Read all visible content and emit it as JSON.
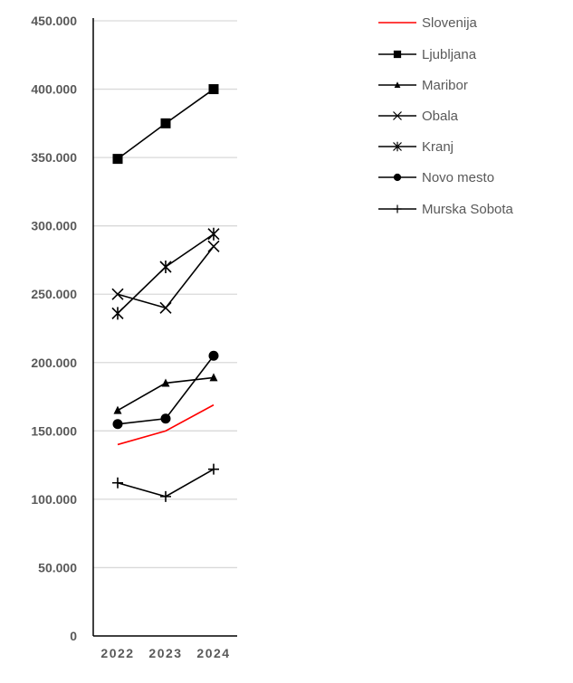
{
  "chart_data": {
    "type": "line",
    "title": "",
    "xlabel": "",
    "ylabel": "",
    "categories": [
      "2022",
      "2023",
      "2024"
    ],
    "ylim": [
      0,
      450000
    ],
    "yticks": [
      0,
      50000,
      100000,
      150000,
      200000,
      250000,
      300000,
      350000,
      400000,
      450000
    ],
    "ytick_labels": [
      "0",
      "50.000",
      "100.000",
      "150.000",
      "200.000",
      "250.000",
      "300.000",
      "350.000",
      "400.000",
      "450.000"
    ],
    "grid": true,
    "legend_position": "right",
    "series": [
      {
        "name": "Slovenija",
        "values": [
          140000,
          150000,
          169000
        ],
        "color": "#ff0000",
        "marker": "none"
      },
      {
        "name": "Ljubljana",
        "values": [
          349000,
          375000,
          400000
        ],
        "color": "#000000",
        "marker": "square"
      },
      {
        "name": "Maribor",
        "values": [
          165000,
          185000,
          189000
        ],
        "color": "#000000",
        "marker": "triangle"
      },
      {
        "name": "Obala",
        "values": [
          250000,
          240000,
          285000
        ],
        "color": "#000000",
        "marker": "x"
      },
      {
        "name": "Kranj",
        "values": [
          236000,
          270000,
          294000
        ],
        "color": "#000000",
        "marker": "star"
      },
      {
        "name": "Novo mesto",
        "values": [
          155000,
          159000,
          205000
        ],
        "color": "#000000",
        "marker": "circle"
      },
      {
        "name": "Murska Sobota",
        "values": [
          112000,
          102000,
          122000
        ],
        "color": "#000000",
        "marker": "plus"
      }
    ]
  }
}
